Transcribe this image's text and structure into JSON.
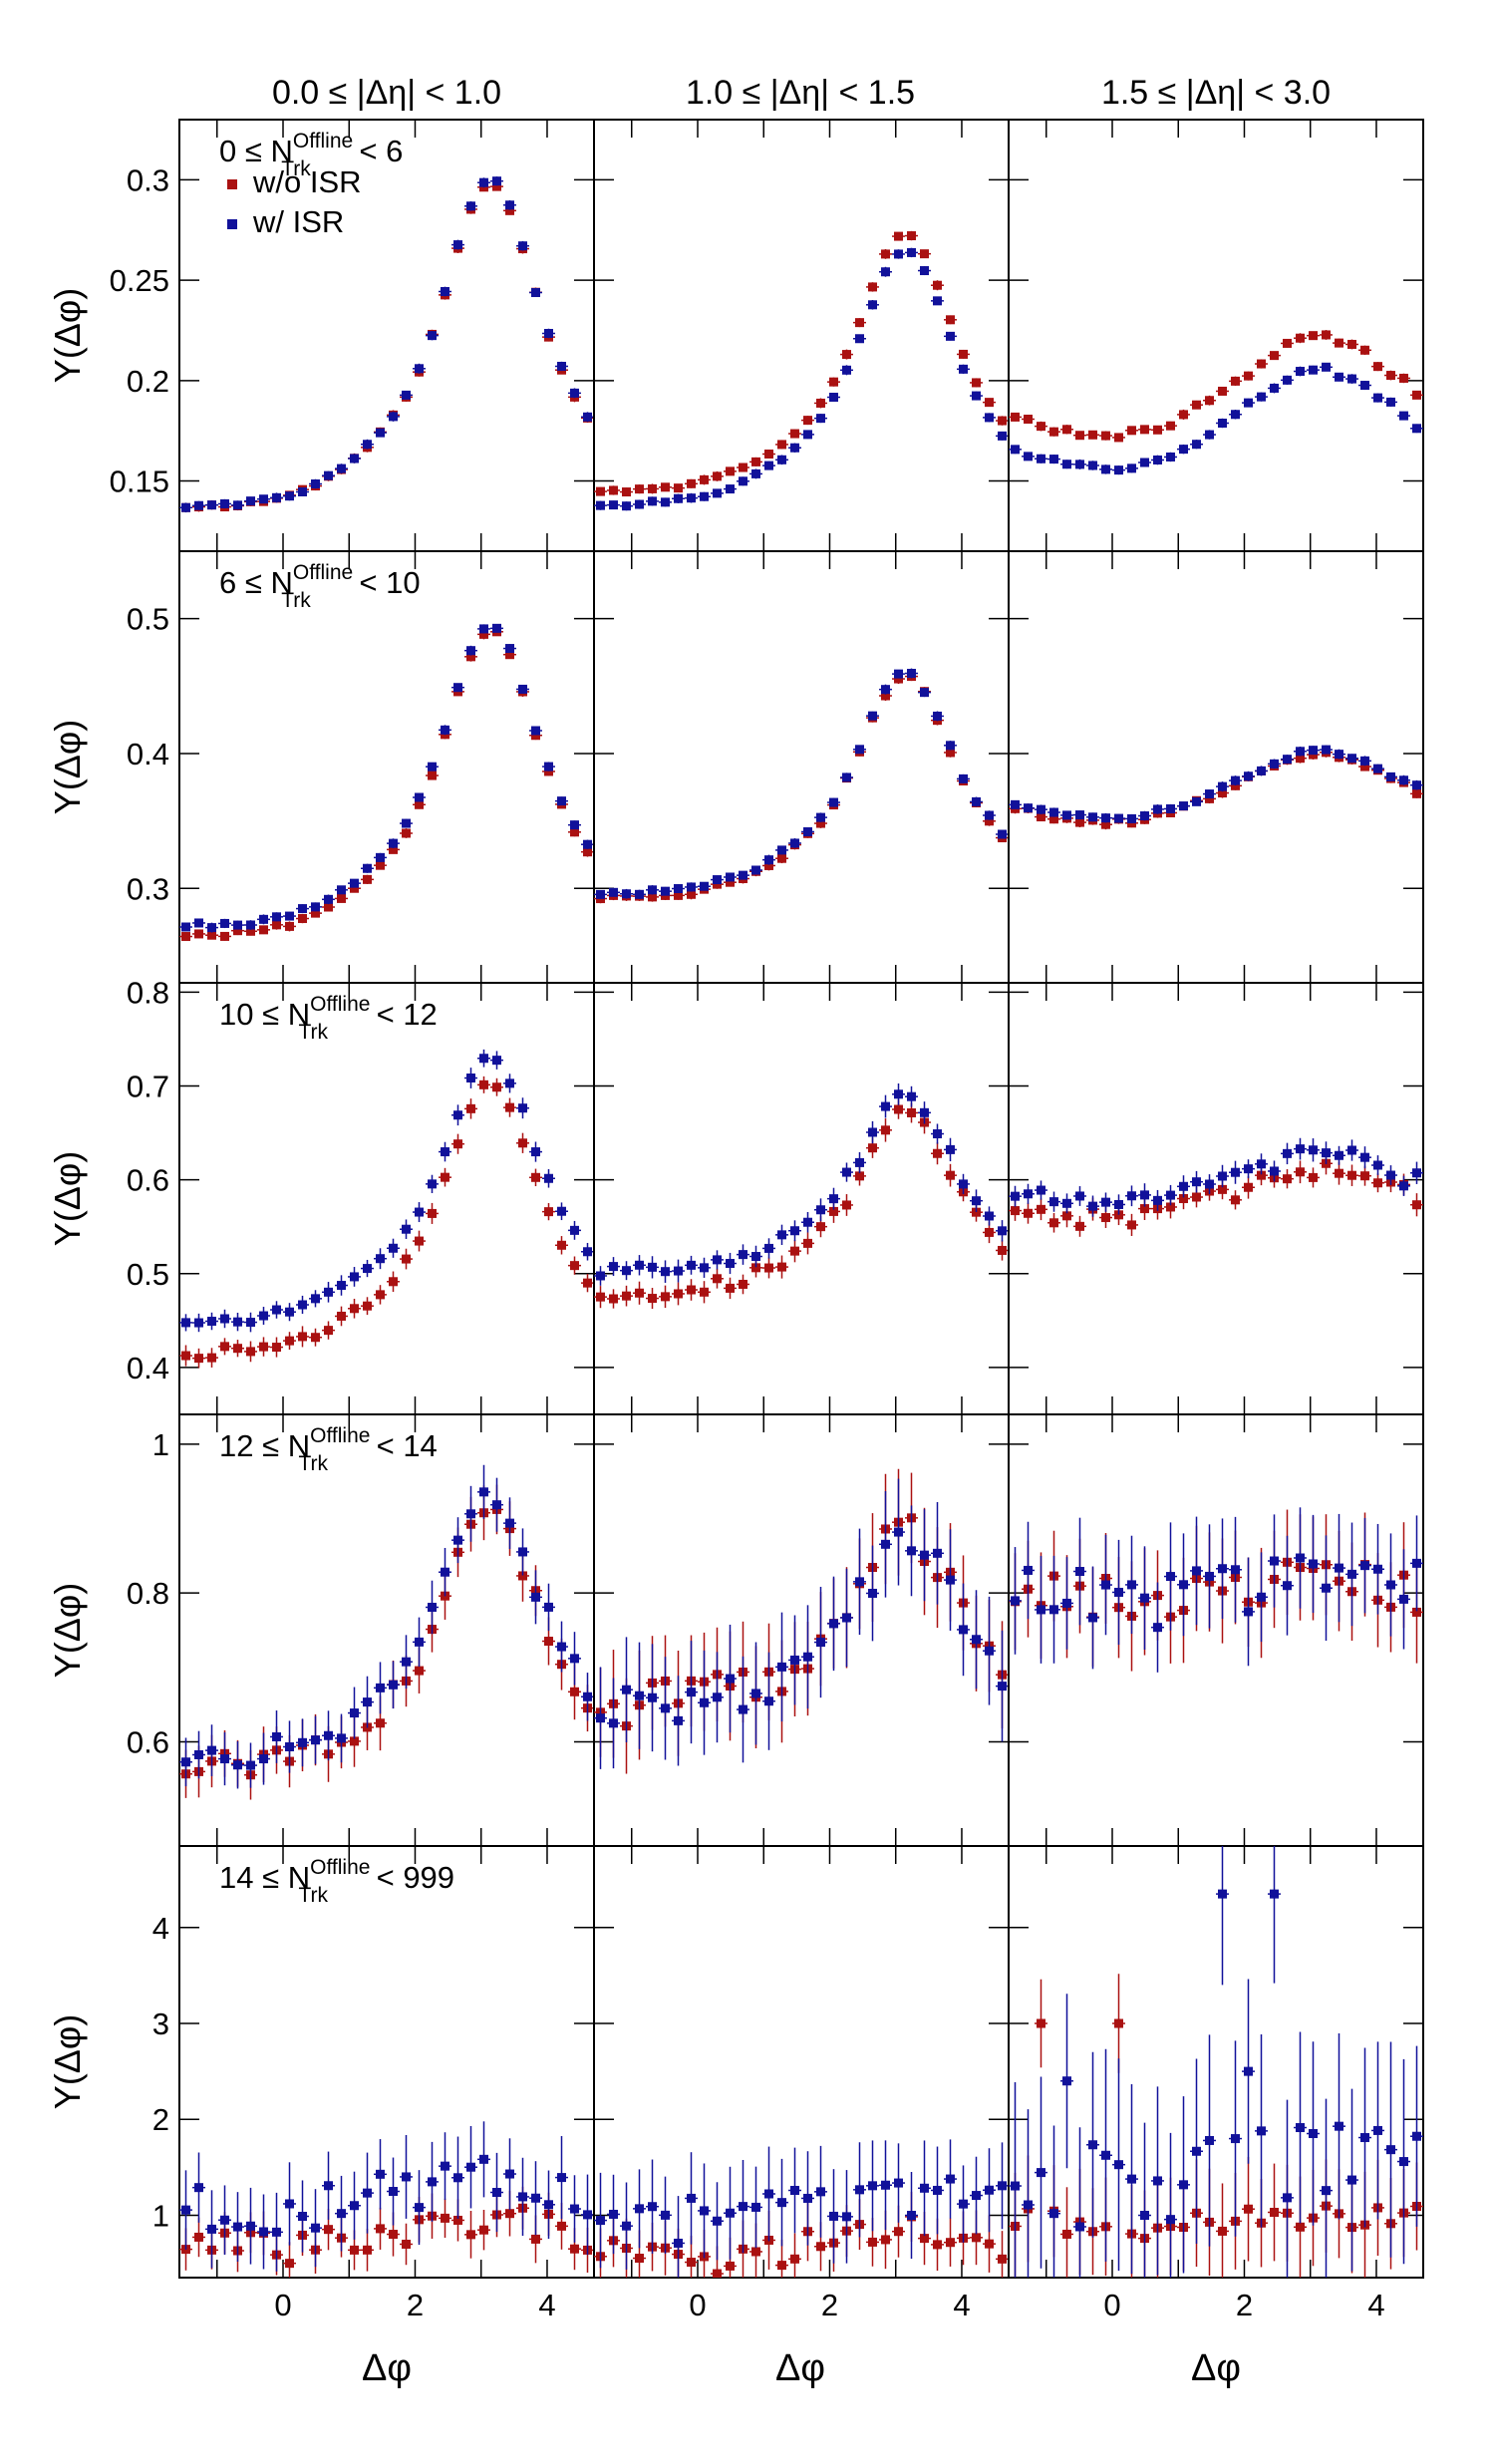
{
  "chart_data": {
    "type": "scatter",
    "x_label": "Δφ",
    "y_label": "Y(Δφ)",
    "x_ticks": [
      0,
      2,
      4
    ],
    "x_range": [
      -1.57,
      4.71
    ],
    "column_titles": [
      "0.0 ≤ |Δη| < 1.0",
      "1.0 ≤ |Δη| < 1.5",
      "1.5 ≤ |Δη| < 3.0"
    ],
    "legend": [
      {
        "label": "w/o ISR",
        "color": "#aa1111"
      },
      {
        "label": "w/ ISR",
        "color": "#11119a"
      }
    ],
    "rows": [
      {
        "title": {
          "pre": "0 ≤ N",
          "sup": "Offline",
          "sub": "Trk",
          "post": " < 6"
        },
        "ylim": [
          0.115,
          0.33
        ],
        "yticks": [
          "0.15",
          "0.2",
          "0.25",
          "0.3"
        ],
        "panels": [
          {
            "shape": "near",
            "woISR": {
              "base": 0.137,
              "peak": 0.298,
              "err": 0.002,
              "noise": 0.001
            },
            "wISR": {
              "base": 0.137,
              "peak": 0.3,
              "err": 0.002,
              "noise": 0.001
            }
          },
          {
            "shape": "near",
            "woISR": {
              "base": 0.145,
              "peak": 0.273,
              "err": 0.002,
              "noise": 0.001
            },
            "wISR": {
              "base": 0.138,
              "peak": 0.264,
              "err": 0.002,
              "noise": 0.001
            }
          },
          {
            "shape": "flat",
            "woISR": {
              "base": 0.171,
              "peak": 0.222,
              "err": 0.002,
              "noise": 0.002
            },
            "wISR": {
              "base": 0.155,
              "peak": 0.205,
              "err": 0.002,
              "noise": 0.002
            }
          }
        ]
      },
      {
        "title": {
          "pre": "6 ≤ N",
          "sup": "Offline",
          "sub": "Trk",
          "post": " < 10"
        },
        "ylim": [
          0.23,
          0.55
        ],
        "yticks": [
          "0.3",
          "0.4",
          "0.5"
        ],
        "panels": [
          {
            "shape": "near",
            "woISR": {
              "base": 0.265,
              "peak": 0.492,
              "err": 0.003,
              "noise": 0.002
            },
            "wISR": {
              "base": 0.272,
              "peak": 0.494,
              "err": 0.003,
              "noise": 0.002
            }
          },
          {
            "shape": "near",
            "woISR": {
              "base": 0.293,
              "peak": 0.458,
              "err": 0.003,
              "noise": 0.002
            },
            "wISR": {
              "base": 0.296,
              "peak": 0.46,
              "err": 0.003,
              "noise": 0.002
            }
          },
          {
            "shape": "flat",
            "woISR": {
              "base": 0.348,
              "peak": 0.4,
              "err": 0.003,
              "noise": 0.002
            },
            "wISR": {
              "base": 0.351,
              "peak": 0.402,
              "err": 0.003,
              "noise": 0.002
            }
          }
        ]
      },
      {
        "title": {
          "pre": "10 ≤ N",
          "sup": "Offline",
          "sub": "Trk",
          "post": " < 12"
        },
        "ylim": [
          0.35,
          0.81
        ],
        "yticks": [
          "0.4",
          "0.5",
          "0.6",
          "0.7",
          "0.8"
        ],
        "panels": [
          {
            "shape": "near",
            "woISR": {
              "base": 0.415,
              "peak": 0.7,
              "err": 0.009,
              "noise": 0.006
            },
            "wISR": {
              "base": 0.45,
              "peak": 0.73,
              "err": 0.009,
              "noise": 0.006
            }
          },
          {
            "shape": "near",
            "woISR": {
              "base": 0.478,
              "peak": 0.67,
              "err": 0.01,
              "noise": 0.008
            },
            "wISR": {
              "base": 0.5,
              "peak": 0.69,
              "err": 0.01,
              "noise": 0.008
            }
          },
          {
            "shape": "flat",
            "woISR": {
              "base": 0.558,
              "peak": 0.612,
              "err": 0.01,
              "noise": 0.01
            },
            "wISR": {
              "base": 0.572,
              "peak": 0.628,
              "err": 0.01,
              "noise": 0.01
            }
          }
        ]
      },
      {
        "title": {
          "pre": "12 ≤ N",
          "sup": "Offline",
          "sub": "Trk",
          "post": " < 14"
        },
        "ylim": [
          0.46,
          1.04
        ],
        "yticks": [
          "0.6",
          "0.8",
          "1"
        ],
        "panels": [
          {
            "shape": "near",
            "woISR": {
              "base": 0.565,
              "peak": 0.91,
              "err": 0.03,
              "noise": 0.02
            },
            "wISR": {
              "base": 0.58,
              "peak": 0.93,
              "err": 0.03,
              "noise": 0.02
            }
          },
          {
            "shape": "near",
            "woISR": {
              "base": 0.65,
              "peak": 0.89,
              "err": 0.06,
              "noise": 0.03
            },
            "wISR": {
              "base": 0.64,
              "peak": 0.87,
              "err": 0.06,
              "noise": 0.03
            }
          },
          {
            "shape": "flat",
            "woISR": {
              "base": 0.79,
              "peak": 0.82,
              "err": 0.06,
              "noise": 0.03
            },
            "wISR": {
              "base": 0.79,
              "peak": 0.82,
              "err": 0.06,
              "noise": 0.04
            }
          }
        ]
      },
      {
        "title": {
          "pre": "14 ≤ N",
          "sup": "Offline",
          "sub": "Trk",
          "post": " < 999"
        },
        "ylim": [
          0.35,
          4.85
        ],
        "yticks": [
          "1",
          "2",
          "3",
          "4"
        ],
        "panels": [
          {
            "shape": "flat",
            "woISR": {
              "base": 0.65,
              "peak": 0.95,
              "err": 0.2,
              "noise": 0.18
            },
            "wISR": {
              "base": 1.05,
              "peak": 1.45,
              "err": 0.35,
              "noise": 0.25
            }
          },
          {
            "shape": "flat",
            "woISR": {
              "base": 0.55,
              "peak": 0.9,
              "err": 0.25,
              "noise": 0.18
            },
            "wISR": {
              "base": 0.95,
              "peak": 1.2,
              "err": 0.4,
              "noise": 0.25
            }
          },
          {
            "shape": "flat",
            "woISR": {
              "base": 0.9,
              "peak": 1.0,
              "err": 0.45,
              "noise": 0.15,
              "spikes": [
                [
                  2,
                  3.0
                ],
                [
                  8,
                  3.0
                ]
              ]
            },
            "wISR": {
              "base": 1.3,
              "peak": 1.6,
              "err": 0.9,
              "noise": 0.45,
              "spikes": [
                [
                  16,
                  4.35
                ],
                [
                  20,
                  4.35
                ],
                [
                  4,
                  2.4
                ],
                [
                  18,
                  2.5
                ]
              ]
            }
          }
        ]
      }
    ]
  }
}
